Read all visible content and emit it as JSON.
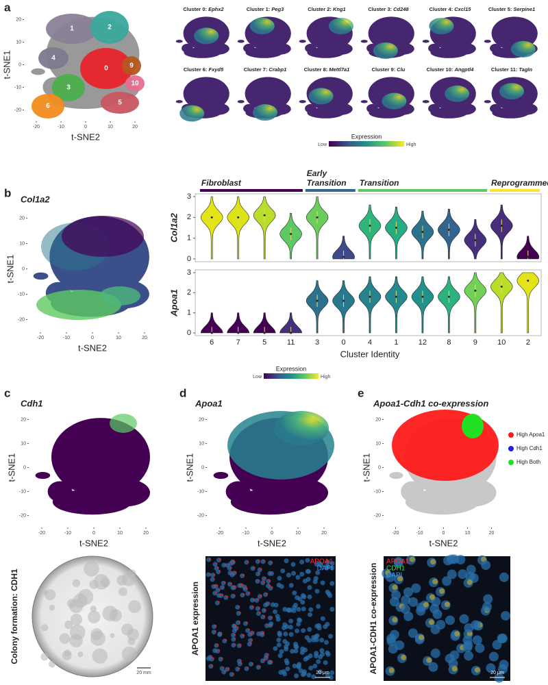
{
  "tsne_axes": {
    "x_label": "t-SNE2",
    "y_label": "t-SNE1",
    "ticks": [
      -20,
      -10,
      0,
      10,
      20
    ]
  },
  "panel_a": {
    "label": "a",
    "clusters": [
      {
        "name": "1",
        "color": "#8b8198"
      },
      {
        "name": "2",
        "color": "#3aa89c"
      },
      {
        "name": "4",
        "color": "#7d7a8f"
      },
      {
        "name": "0",
        "color": "#e8242a"
      },
      {
        "name": "9",
        "color": "#b5561f"
      },
      {
        "name": "10",
        "color": "#e56f8f"
      },
      {
        "name": "3",
        "color": "#4cae4c"
      },
      {
        "name": "6",
        "color": "#f28c1e"
      },
      {
        "name": "5",
        "color": "#c95560"
      }
    ],
    "feature_plots": [
      {
        "title": "Cluster 0:",
        "gene": "Ephx2"
      },
      {
        "title": "Cluster 1:",
        "gene": "Peg3"
      },
      {
        "title": "Cluster 2:",
        "gene": "Kng1"
      },
      {
        "title": "Cluster 3:",
        "gene": "Cd248"
      },
      {
        "title": "Cluster 4:",
        "gene": "Cxcl15"
      },
      {
        "title": "Cluster 5:",
        "gene": "Serpine1"
      },
      {
        "title": "Cluster 6:",
        "gene": "Fxyd5"
      },
      {
        "title": "Cluster 7:",
        "gene": "Crabp1"
      },
      {
        "title": "Cluster 8:",
        "gene": "Mettl7a1"
      },
      {
        "title": "Cluster 9:",
        "gene": "Clu"
      },
      {
        "title": "Cluster 10:",
        "gene": "Angptl4"
      },
      {
        "title": "Cluster 11:",
        "gene": "Tagln"
      }
    ],
    "legend": {
      "title": "Expression",
      "low": "Low",
      "high": "High"
    }
  },
  "panel_b": {
    "label": "b",
    "title": "Col1a2",
    "legend": {
      "title": "Expression",
      "low": "Low",
      "high": "High"
    },
    "violin": {
      "type": "violin",
      "x_label": "Cluster Identity",
      "categories": [
        "6",
        "7",
        "5",
        "11",
        "3",
        "0",
        "4",
        "1",
        "12",
        "8",
        "9",
        "10",
        "2"
      ],
      "ylim": [
        0,
        3
      ],
      "yticks": [
        0,
        1,
        2,
        3
      ],
      "series": [
        {
          "name": "Col1a2",
          "values": [
            2.0,
            2.0,
            2.1,
            1.2,
            2.0,
            0.1,
            1.6,
            1.5,
            1.3,
            1.4,
            0.9,
            1.6,
            0.1
          ],
          "colors": [
            "#e3e418",
            "#dde318",
            "#b8de29",
            "#5ec962",
            "#6ccd5a",
            "#3e4a89",
            "#2fb47c",
            "#25ac82",
            "#2c728e",
            "#32648e",
            "#46307e",
            "#472d7b",
            "#440154"
          ]
        },
        {
          "name": "Apoa1",
          "values": [
            0,
            0,
            0,
            0,
            1.6,
            1.6,
            1.8,
            1.8,
            1.8,
            1.8,
            2.1,
            2.3,
            2.6
          ],
          "colors": [
            "#440154",
            "#440154",
            "#440154",
            "#46307e",
            "#2c728e",
            "#2a788e",
            "#26828e",
            "#23898e",
            "#21918c",
            "#2db27d",
            "#73d056",
            "#b8de29",
            "#e3e418"
          ]
        }
      ],
      "groups": [
        {
          "lines": [
            "Fibroblast"
          ],
          "color": "#440154",
          "categories": [
            "6",
            "7",
            "5",
            "11"
          ]
        },
        {
          "lines": [
            "Early",
            "Transition"
          ],
          "color": "#31688e",
          "categories": [
            "3",
            "0"
          ]
        },
        {
          "lines": [
            "Transition"
          ],
          "color": "#5ec962",
          "categories": [
            "4",
            "1",
            "12",
            "8",
            "9"
          ]
        },
        {
          "lines": [
            "Reprogrammed"
          ],
          "color": "#fde725",
          "categories": [
            "10",
            "2"
          ]
        }
      ]
    }
  },
  "panel_c": {
    "label": "c",
    "title": "Cdh1",
    "image_label": "Colony formation: CDH1",
    "scale_bar": "20 mm"
  },
  "panel_d": {
    "label": "d",
    "title": "Apoa1",
    "image_label": "APOA1 expression",
    "channels": [
      {
        "name": "APOA1",
        "color": "#ff2a2a"
      },
      {
        "name": "DAPI",
        "color": "#3aa0ff"
      }
    ],
    "scale_bar": "20 μm"
  },
  "panel_e": {
    "label": "e",
    "title": "Apoa1-Cdh1 co-expression",
    "legend": [
      {
        "label": "High Apoa1",
        "color": "#ff1a1a"
      },
      {
        "label": "High Cdh1",
        "color": "#2020e0"
      },
      {
        "label": "High Both",
        "color": "#22e022"
      }
    ],
    "image_label": "APOA1-CDH1 co-expression",
    "channels": [
      {
        "name": "APOA1",
        "color": "#ff2a2a"
      },
      {
        "name": "CDH1",
        "color": "#3fd13f"
      },
      {
        "name": "DAPI",
        "color": "#3aa0ff"
      }
    ],
    "scale_bar": "20 μm"
  }
}
